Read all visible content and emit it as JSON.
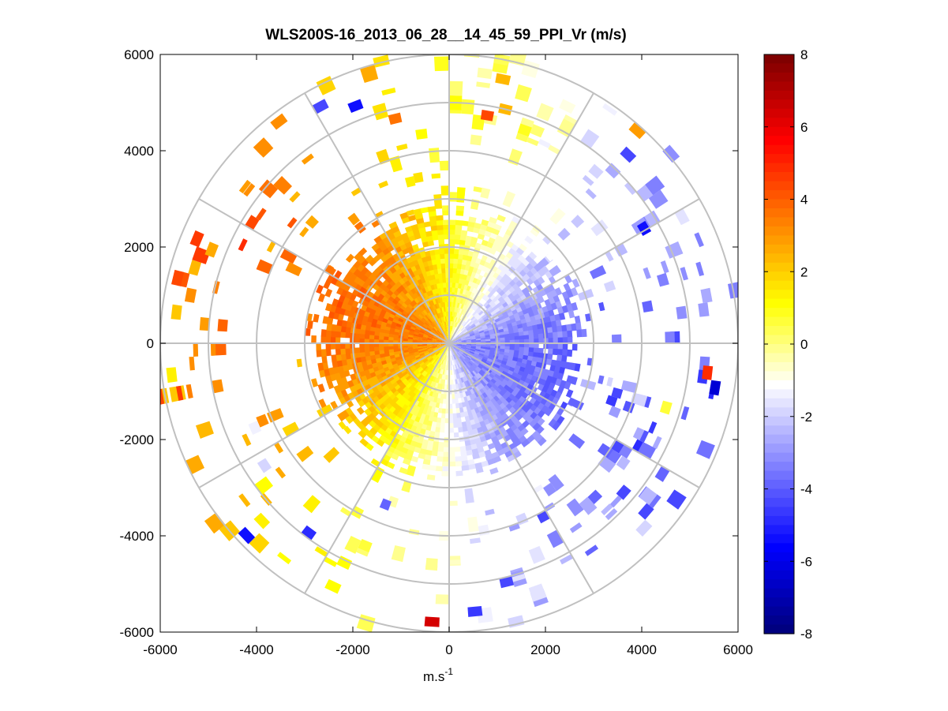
{
  "chart_data": {
    "type": "heatmap",
    "subtype": "polar-ppi",
    "title": "WLS200S-16_2013_06_28__14_45_59_PPI_Vr (m/s)",
    "xlabel": "m.s",
    "xlabel_exponent": "-1",
    "ylabel": "",
    "xlim": [
      -6000,
      6000
    ],
    "ylim": [
      -6000,
      6000
    ],
    "xticks": [
      "-6000",
      "-4000",
      "-2000",
      "0",
      "2000",
      "4000",
      "6000"
    ],
    "yticks": [
      "6000",
      "4000",
      "2000",
      "0",
      "-2000",
      "-4000",
      "-6000"
    ],
    "range_rings_m": [
      1000,
      2000,
      3000,
      4000,
      5000,
      6000
    ],
    "spoke_angles_deg": [
      0,
      30,
      60,
      90,
      120,
      150,
      180,
      210,
      240,
      270,
      300,
      330
    ],
    "colorbar": {
      "min": -8,
      "max": 8,
      "ticks": [
        "8",
        "6",
        "4",
        "2",
        "0",
        "-2",
        "-4",
        "-6",
        "-8"
      ],
      "colors": [
        "#000080",
        "#0000ff",
        "#8080ff",
        "#ffffff",
        "#ffff00",
        "#ff8000",
        "#ff0000",
        "#800000"
      ]
    },
    "field": {
      "description": "radial velocity: positive (yellow/orange) west of center, negative (blue) east of center",
      "dense_range_m": 2700,
      "sparse_range_m": 6000,
      "sparse_patches": [
        {
          "az": 345,
          "r": 4700,
          "v": 3.6
        },
        {
          "az": 10,
          "r": 5500,
          "v": 2.5
        },
        {
          "az": 12,
          "r": 4900,
          "v": 2.4
        },
        {
          "az": 8,
          "r": 4700,
          "v": 4.5
        },
        {
          "az": 18,
          "r": 4600,
          "v": 0.8
        },
        {
          "az": 25,
          "r": 5400,
          "v": -0.8
        },
        {
          "az": 40,
          "r": 5800,
          "v": 3.0
        },
        {
          "az": 42,
          "r": 5300,
          "v": -4.5
        },
        {
          "az": 48,
          "r": 5000,
          "v": -1.2
        },
        {
          "az": 58,
          "r": 4600,
          "v": -5.5
        },
        {
          "az": 95,
          "r": 5300,
          "v": 5.0
        },
        {
          "az": 98,
          "r": 5500,
          "v": -6.5
        },
        {
          "az": 105,
          "r": 4600,
          "v": 0.6
        },
        {
          "az": 120,
          "r": 4200,
          "v": -3.5
        },
        {
          "az": 135,
          "r": 4300,
          "v": -4.0
        },
        {
          "az": 150,
          "r": 4000,
          "v": -4.5
        },
        {
          "az": 165,
          "r": 5000,
          "v": -4.5
        },
        {
          "az": 173,
          "r": 5500,
          "v": -4.8
        },
        {
          "az": 182,
          "r": 5700,
          "v": 6.5
        },
        {
          "az": 200,
          "r": 3500,
          "v": -4.0
        },
        {
          "az": 215,
          "r": 4800,
          "v": -5.0
        },
        {
          "az": 225,
          "r": 5700,
          "v": -5.5
        },
        {
          "az": 235,
          "r": 4500,
          "v": -2.0
        },
        {
          "az": 245,
          "r": 4300,
          "v": -1.5
        },
        {
          "az": 262,
          "r": 5700,
          "v": 1.4
        },
        {
          "az": 275,
          "r": 5600,
          "v": 2.2
        },
        {
          "az": 290,
          "r": 5200,
          "v": 2.6
        },
        {
          "az": 300,
          "r": 4700,
          "v": 4.5
        },
        {
          "az": 310,
          "r": 3700,
          "v": 2.6
        },
        {
          "az": 330,
          "r": 5500,
          "v": -4.5
        },
        {
          "az": 337,
          "r": 5200,
          "v": -5.5
        }
      ]
    }
  }
}
